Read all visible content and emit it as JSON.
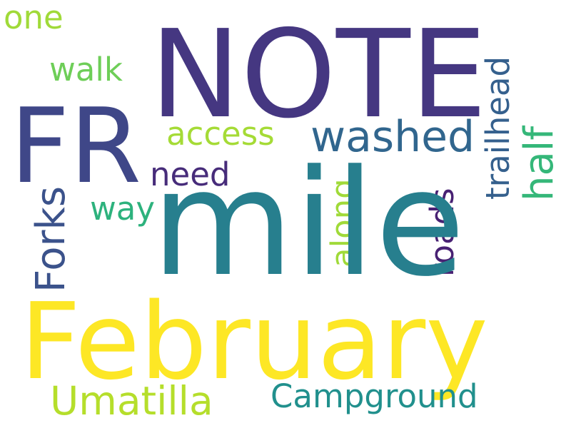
{
  "words": {
    "note": {
      "text": "NOTE",
      "color": "#453781"
    },
    "fr": {
      "text": "FR",
      "color": "#3f4788"
    },
    "mile": {
      "text": "mile",
      "color": "#277f8e"
    },
    "february": {
      "text": "February",
      "color": "#fde725"
    },
    "washed": {
      "text": "washed",
      "color": "#31668e"
    },
    "access": {
      "text": "access",
      "color": "#a5db36"
    },
    "need": {
      "text": "need",
      "color": "#472c7a"
    },
    "way": {
      "text": "way",
      "color": "#2db27d"
    },
    "walk": {
      "text": "walk",
      "color": "#6ece58"
    },
    "one": {
      "text": "one",
      "color": "#a0da39"
    },
    "umatilla": {
      "text": "Umatilla",
      "color": "#b5de2b"
    },
    "campground": {
      "text": "Campground",
      "color": "#21908d"
    },
    "forks": {
      "text": "Forks",
      "color": "#3b528b"
    },
    "along": {
      "text": "along",
      "color": "#a0da39"
    },
    "roads": {
      "text": "roads",
      "color": "#482173"
    },
    "trailhead": {
      "text": "trailhead",
      "color": "#35608d"
    },
    "half": {
      "text": "half",
      "color": "#35b779"
    }
  }
}
